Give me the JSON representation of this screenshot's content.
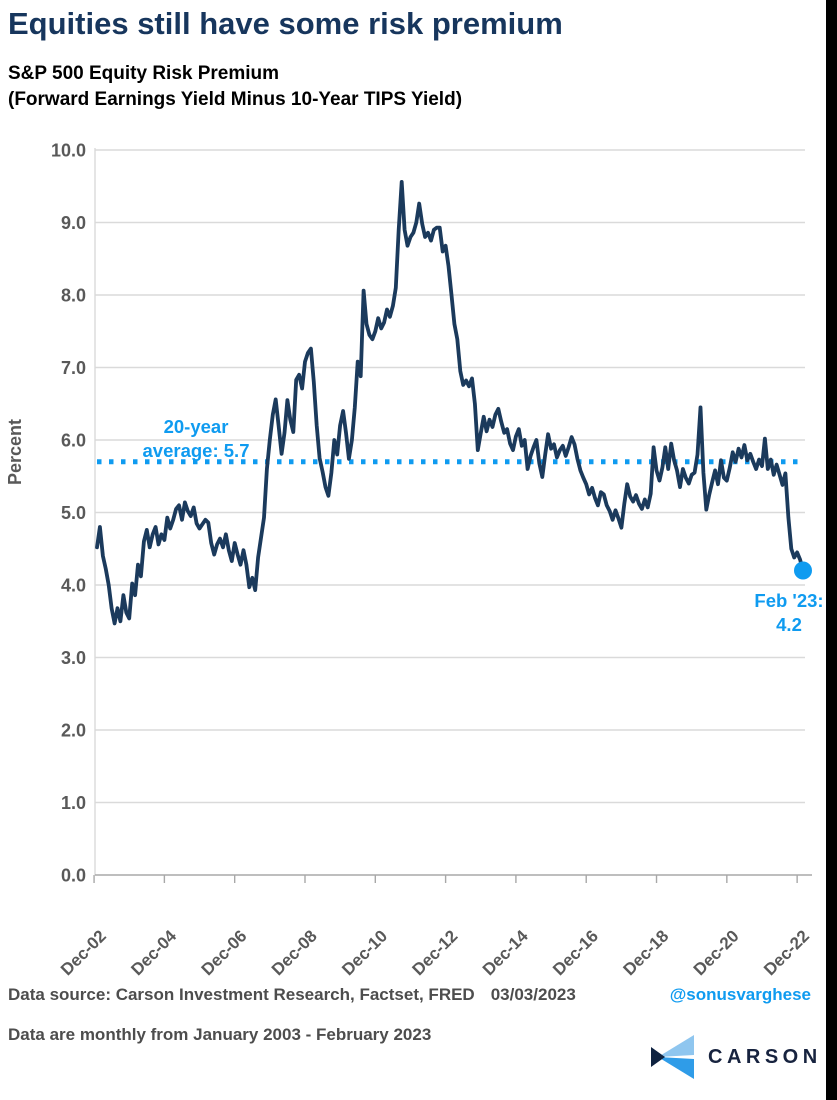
{
  "page": {
    "title": "Equities still have some risk premium",
    "subtitle_line1": "S&P 500 Equity Risk Premium",
    "subtitle_line2": "(Forward Earnings Yield Minus 10-Year TIPS Yield)"
  },
  "chart_data": {
    "type": "line",
    "title": "S&P 500 Equity Risk Premium (Forward Earnings Yield Minus 10-Year TIPS Yield)",
    "xlabel": "",
    "ylabel": "Percent",
    "ylim": [
      0.0,
      10.0
    ],
    "yticks": [
      "0.0",
      "1.0",
      "2.0",
      "3.0",
      "4.0",
      "5.0",
      "6.0",
      "7.0",
      "8.0",
      "9.0",
      "10.0"
    ],
    "xticklabels": [
      "Dec-02",
      "Dec-04",
      "Dec-06",
      "Dec-08",
      "Dec-10",
      "Dec-12",
      "Dec-14",
      "Dec-16",
      "Dec-18",
      "Dec-20",
      "Dec-22"
    ],
    "frequency": "monthly",
    "x_start": "Jan-2003",
    "x_end": "Feb-2023",
    "grid": true,
    "line_color": "#1B3A5C",
    "accent_blue": "#0F9BF0",
    "series": [
      {
        "name": "S&P 500 Equity Risk Premium",
        "values": [
          4.52,
          4.8,
          4.4,
          4.22,
          4.0,
          3.68,
          3.47,
          3.68,
          3.5,
          3.86,
          3.62,
          3.54,
          4.02,
          3.86,
          4.28,
          4.12,
          4.6,
          4.76,
          4.52,
          4.7,
          4.8,
          4.56,
          4.7,
          4.62,
          4.93,
          4.78,
          4.9,
          5.05,
          5.1,
          4.9,
          5.14,
          5.02,
          4.95,
          5.07,
          4.85,
          4.78,
          4.84,
          4.9,
          4.86,
          4.58,
          4.42,
          4.56,
          4.64,
          4.52,
          4.7,
          4.48,
          4.33,
          4.58,
          4.42,
          4.28,
          4.48,
          4.28,
          3.97,
          4.1,
          3.93,
          4.38,
          4.65,
          4.93,
          5.6,
          6.0,
          6.35,
          6.56,
          6.2,
          5.81,
          6.1,
          6.55,
          6.28,
          6.11,
          6.83,
          6.9,
          6.71,
          7.08,
          7.2,
          7.26,
          6.8,
          6.2,
          5.75,
          5.56,
          5.35,
          5.23,
          5.55,
          6.0,
          5.8,
          6.2,
          6.4,
          6.1,
          5.74,
          6.0,
          6.45,
          7.08,
          6.88,
          8.06,
          7.6,
          7.45,
          7.39,
          7.5,
          7.68,
          7.54,
          7.62,
          7.8,
          7.7,
          7.85,
          8.1,
          8.9,
          9.56,
          8.9,
          8.68,
          8.8,
          8.86,
          9.0,
          9.26,
          8.98,
          8.8,
          8.86,
          8.75,
          8.9,
          8.93,
          8.93,
          8.6,
          8.68,
          8.4,
          8.0,
          7.6,
          7.39,
          6.95,
          6.76,
          6.82,
          6.74,
          6.85,
          6.5,
          5.86,
          6.1,
          6.32,
          6.12,
          6.28,
          6.18,
          6.35,
          6.43,
          6.25,
          6.1,
          6.15,
          5.95,
          5.86,
          6.05,
          6.15,
          5.92,
          6.0,
          5.6,
          5.78,
          5.9,
          6.0,
          5.68,
          5.49,
          5.8,
          6.08,
          5.88,
          5.94,
          5.76,
          5.86,
          5.92,
          5.78,
          5.9,
          6.04,
          5.94,
          5.74,
          5.58,
          5.48,
          5.39,
          5.25,
          5.34,
          5.2,
          5.1,
          5.28,
          5.25,
          5.1,
          5.02,
          4.9,
          5.03,
          4.92,
          4.79,
          5.12,
          5.39,
          5.22,
          5.15,
          5.24,
          5.12,
          5.05,
          5.18,
          5.07,
          5.26,
          5.9,
          5.58,
          5.44,
          5.62,
          5.9,
          5.6,
          5.95,
          5.72,
          5.58,
          5.35,
          5.6,
          5.48,
          5.4,
          5.52,
          5.55,
          5.8,
          6.45,
          5.55,
          5.04,
          5.25,
          5.42,
          5.58,
          5.39,
          5.72,
          5.48,
          5.44,
          5.62,
          5.83,
          5.7,
          5.88,
          5.76,
          5.93,
          5.72,
          5.81,
          5.7,
          5.6,
          5.73,
          5.64,
          6.02,
          5.6,
          5.73,
          5.52,
          5.66,
          5.52,
          5.38,
          5.54,
          4.93,
          4.5,
          4.38,
          4.45,
          4.35,
          4.2
        ]
      }
    ],
    "average_line": {
      "value": 5.7,
      "label_line1": "20-year",
      "label_line2": "average: 5.7",
      "style": "dotted",
      "color": "#0F9BF0"
    },
    "end_point": {
      "value": 4.2,
      "label_line1": "Feb '23:",
      "label_line2": "4.2",
      "marker": "dot",
      "color": "#0F9BF0"
    }
  },
  "footer": {
    "source_line": "Data source: Carson Investment Research, Factset, FRED",
    "date": "03/03/2023",
    "handle": "@sonusvarghese",
    "note_line": "Data are monthly from January 2003 - February 2023",
    "logo_text": "CARSON"
  }
}
